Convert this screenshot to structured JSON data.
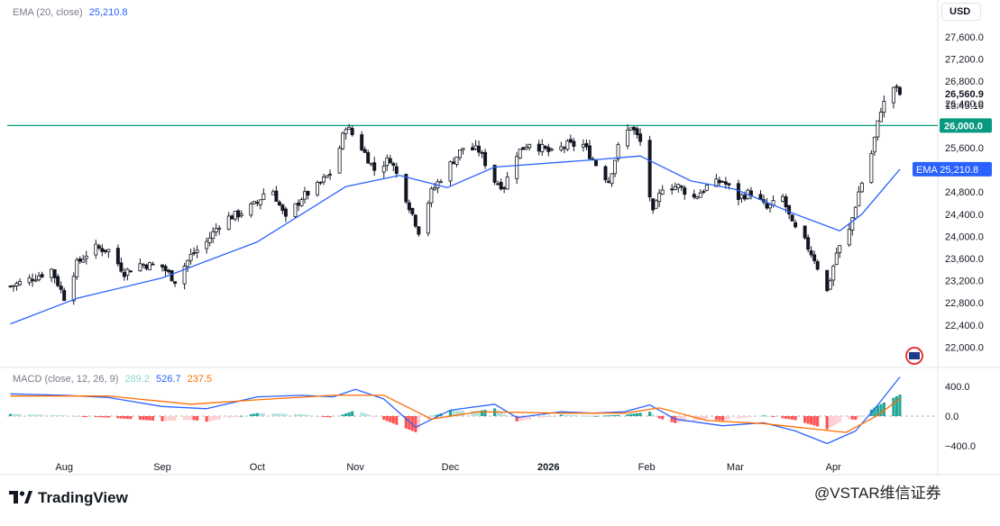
{
  "app": {
    "brand": "TradingView",
    "brand_icon": "tradingview-logo-icon",
    "watermark": "@VSTAR维信证券"
  },
  "header": {
    "ema_label": "EMA (20, close)",
    "ema_value": "25,210.8",
    "macd_label": "MACD (close, 12, 26, 9)",
    "macd_hist_value": "289.2",
    "macd_line_value": "526.7",
    "macd_signal_value": "237.5"
  },
  "price_axis": {
    "currency": "USD",
    "ticks": [
      "27,600.0",
      "27,200.0",
      "26,800.0",
      "26,400.0",
      "26,000.0",
      "25,600.0",
      "25,200.0",
      "24,800.0",
      "24,400.0",
      "24,000.0",
      "23,600.0",
      "23,200.0",
      "22,800.0",
      "22,400.0",
      "22,000.0"
    ],
    "last_price": "26,560.9",
    "countdown": "13:45:16",
    "level_label": "26,000.0",
    "ema_tag": "EMA",
    "ema_tag_value": "25,210.8"
  },
  "macd_axis": {
    "ticks": [
      "400.0",
      "0.0",
      "−400.0"
    ]
  },
  "time_axis": {
    "labels": [
      "Aug",
      "Sep",
      "Oct",
      "Nov",
      "Dec",
      "2026",
      "Feb",
      "Mar",
      "Apr"
    ]
  },
  "colors": {
    "up": "#131722",
    "down_body": "#131722",
    "up_body": "#ffffff",
    "ema": "#2962ff",
    "level": "#089981",
    "macd_line": "#2962ff",
    "signal_line": "#ff6d00",
    "hist_pos_strong": "#26a69a",
    "hist_pos_weak": "#b2dfdb",
    "hist_neg_strong": "#ff5252",
    "hist_neg_weak": "#ffcdd2"
  },
  "chart_data": [
    {
      "type": "candlestick",
      "title": "",
      "ylim": [
        22000,
        27800
      ],
      "horizontal_level": 26000,
      "x_labels": [
        "Aug",
        "Sep",
        "Oct",
        "Nov",
        "Dec",
        "2026",
        "Feb",
        "Mar",
        "Apr"
      ],
      "close_path": [
        [
          "2025-07-15",
          23100
        ],
        [
          "2025-07-20",
          23200
        ],
        [
          "2025-07-25",
          23320
        ],
        [
          "2025-07-28",
          23400
        ],
        [
          "2025-08-01",
          22900
        ],
        [
          "2025-08-05",
          23500
        ],
        [
          "2025-08-10",
          23800
        ],
        [
          "2025-08-15",
          23750
        ],
        [
          "2025-08-20",
          23350
        ],
        [
          "2025-08-25",
          23500
        ],
        [
          "2025-09-01",
          23450
        ],
        [
          "2025-09-05",
          23200
        ],
        [
          "2025-09-10",
          23650
        ],
        [
          "2025-09-15",
          23900
        ],
        [
          "2025-09-20",
          24300
        ],
        [
          "2025-09-25",
          24400
        ],
        [
          "2025-10-01",
          24600
        ],
        [
          "2025-10-05",
          24950
        ],
        [
          "2025-10-10",
          24300
        ],
        [
          "2025-10-15",
          24700
        ],
        [
          "2025-10-20",
          24900
        ],
        [
          "2025-10-25",
          25200
        ],
        [
          "2025-10-29",
          26000
        ],
        [
          "2025-11-03",
          25600
        ],
        [
          "2025-11-07",
          25200
        ],
        [
          "2025-11-12",
          25400
        ],
        [
          "2025-11-17",
          24700
        ],
        [
          "2025-11-21",
          24100
        ],
        [
          "2025-11-25",
          24800
        ],
        [
          "2025-12-01",
          25300
        ],
        [
          "2025-12-05",
          25600
        ],
        [
          "2025-12-10",
          25550
        ],
        [
          "2025-12-15",
          25000
        ],
        [
          "2025-12-18",
          24900
        ],
        [
          "2025-12-22",
          25500
        ],
        [
          "2025-12-26",
          25700
        ],
        [
          "2026-01-02",
          25500
        ],
        [
          "2026-01-07",
          25650
        ],
        [
          "2026-01-12",
          25650
        ],
        [
          "2026-01-16",
          25300
        ],
        [
          "2026-01-20",
          25000
        ],
        [
          "2026-01-23",
          25600
        ],
        [
          "2026-01-27",
          26000
        ],
        [
          "2026-01-30",
          25700
        ],
        [
          "2026-02-03",
          24400
        ],
        [
          "2026-02-06",
          24900
        ],
        [
          "2026-02-11",
          24900
        ],
        [
          "2026-02-16",
          24700
        ],
        [
          "2026-02-20",
          24900
        ],
        [
          "2026-02-25",
          25000
        ],
        [
          "2026-03-02",
          24700
        ],
        [
          "2026-03-06",
          24800
        ],
        [
          "2026-03-11",
          24500
        ],
        [
          "2026-03-16",
          24700
        ],
        [
          "2026-03-19",
          24200
        ],
        [
          "2026-03-23",
          23900
        ],
        [
          "2026-03-26",
          23600
        ],
        [
          "2026-03-30",
          23000
        ],
        [
          "2026-04-02",
          23700
        ],
        [
          "2026-04-06",
          24100
        ],
        [
          "2026-04-09",
          24800
        ],
        [
          "2026-04-13",
          25500
        ],
        [
          "2026-04-16",
          26300
        ],
        [
          "2026-04-20",
          26700
        ],
        [
          "2026-04-22",
          26560.9
        ]
      ],
      "series": [
        {
          "name": "EMA",
          "values": [
            [
              "2025-07-15",
              22420
            ],
            [
              "2025-08-05",
              22880
            ],
            [
              "2025-09-01",
              23250
            ],
            [
              "2025-10-01",
              23900
            ],
            [
              "2025-10-29",
              24900
            ],
            [
              "2025-11-15",
              25100
            ],
            [
              "2025-11-30",
              24880
            ],
            [
              "2025-12-15",
              25250
            ],
            [
              "2026-01-15",
              25380
            ],
            [
              "2026-01-30",
              25450
            ],
            [
              "2026-02-15",
              25000
            ],
            [
              "2026-03-01",
              24850
            ],
            [
              "2026-03-20",
              24400
            ],
            [
              "2026-04-03",
              24100
            ],
            [
              "2026-04-10",
              24400
            ],
            [
              "2026-04-22",
              25210.8
            ]
          ]
        }
      ],
      "last_price": 26560.9
    },
    {
      "type": "histogram+line",
      "title": "MACD (close, 12, 26, 9)",
      "ylim": [
        -500,
        550
      ],
      "series": [
        {
          "name": "MACD",
          "values": [
            [
              "2025-07-15",
              300
            ],
            [
              "2025-08-01",
              280
            ],
            [
              "2025-08-15",
              250
            ],
            [
              "2025-09-01",
              130
            ],
            [
              "2025-09-15",
              100
            ],
            [
              "2025-10-01",
              260
            ],
            [
              "2025-10-15",
              280
            ],
            [
              "2025-10-25",
              260
            ],
            [
              "2025-11-01",
              360
            ],
            [
              "2025-11-10",
              230
            ],
            [
              "2025-11-20",
              -150
            ],
            [
              "2025-12-01",
              80
            ],
            [
              "2025-12-15",
              160
            ],
            [
              "2025-12-22",
              -20
            ],
            [
              "2026-01-05",
              60
            ],
            [
              "2026-01-15",
              40
            ],
            [
              "2026-01-25",
              60
            ],
            [
              "2026-02-02",
              150
            ],
            [
              "2026-02-10",
              -40
            ],
            [
              "2026-02-25",
              -130
            ],
            [
              "2026-03-10",
              -90
            ],
            [
              "2026-03-20",
              -200
            ],
            [
              "2026-03-30",
              -370
            ],
            [
              "2026-04-08",
              -200
            ],
            [
              "2026-04-15",
              150
            ],
            [
              "2026-04-22",
              526.7
            ]
          ]
        },
        {
          "name": "Signal",
          "values": [
            [
              "2025-07-15",
              270
            ],
            [
              "2025-08-15",
              270
            ],
            [
              "2025-09-10",
              160
            ],
            [
              "2025-10-01",
              220
            ],
            [
              "2025-10-25",
              280
            ],
            [
              "2025-11-10",
              280
            ],
            [
              "2025-11-25",
              -40
            ],
            [
              "2025-12-10",
              60
            ],
            [
              "2026-01-05",
              40
            ],
            [
              "2026-01-25",
              40
            ],
            [
              "2026-02-05",
              110
            ],
            [
              "2026-02-20",
              -60
            ],
            [
              "2026-03-10",
              -100
            ],
            [
              "2026-03-25",
              -170
            ],
            [
              "2026-04-05",
              -220
            ],
            [
              "2026-04-15",
              10
            ],
            [
              "2026-04-22",
              237.5
            ]
          ]
        }
      ],
      "last_values": {
        "histogram": 289.2,
        "macd": 526.7,
        "signal": 237.5
      }
    }
  ]
}
